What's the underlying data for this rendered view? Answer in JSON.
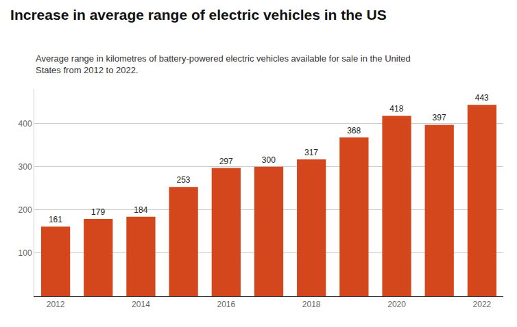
{
  "chart_data": {
    "type": "bar",
    "title": "Increase in average range of electric vehicles in the US",
    "subtitle": "Average range in kilometres of battery-powered electric vehicles available for sale in the United\nStates from 2012 to 2022.",
    "categories": [
      "2012",
      null,
      "2014",
      null,
      "2016",
      null,
      "2018",
      null,
      "2020",
      null,
      "2022"
    ],
    "values": [
      161,
      179,
      184,
      253,
      297,
      300,
      317,
      368,
      418,
      397,
      443
    ],
    "color": "#d4471c",
    "ylim": [
      0,
      480
    ],
    "yticks": [
      100,
      200,
      300,
      400
    ],
    "grid": true,
    "data_labels": true
  }
}
